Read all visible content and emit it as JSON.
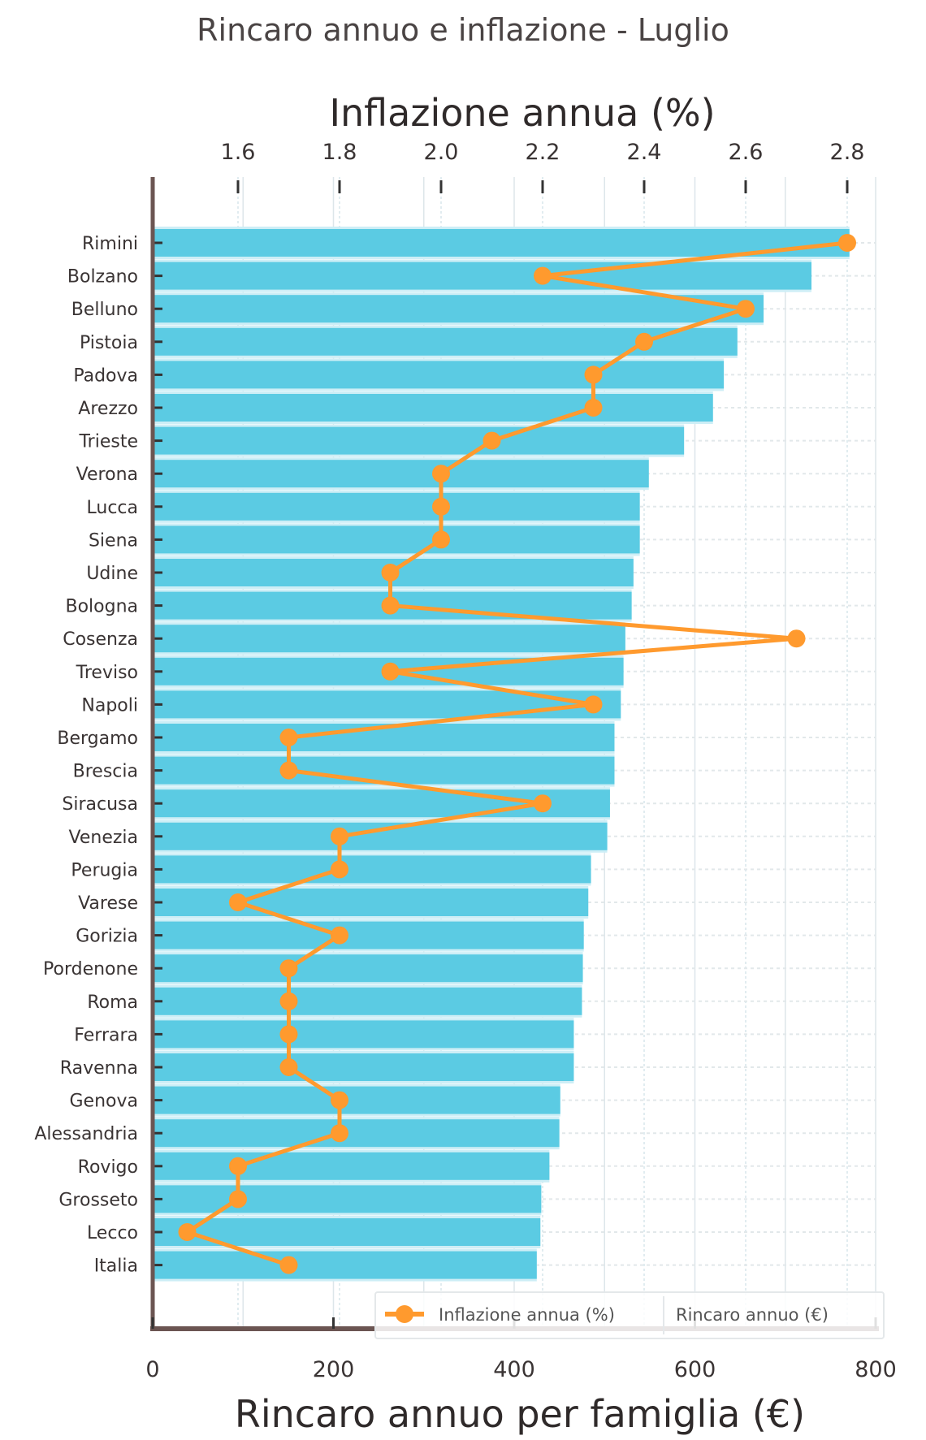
{
  "chart_data": {
    "type": "bar",
    "orientation": "horizontal",
    "title": "Rincaro annuo e inflazione - Luglio",
    "xlabel": "Rincaro annuo per famiglia (€)",
    "x2label": "Inflazione annua (%)",
    "xlim": [
      0,
      800
    ],
    "x2lim": [
      1.43,
      2.84
    ],
    "xticks": [
      0,
      200,
      400,
      600,
      800
    ],
    "xtick_labels": [
      "0",
      "200",
      "400",
      "600",
      "800"
    ],
    "x2ticks": [
      1.6,
      1.8,
      2.0,
      2.2,
      2.4,
      2.6,
      2.8
    ],
    "x2tick_labels": [
      "1.6",
      "1.8",
      "2.0",
      "2.2",
      "2.4",
      "2.6",
      "2.8"
    ],
    "grid": true,
    "legend_position": "bottom-right",
    "categories": [
      "Rimini",
      "Bolzano",
      "Belluno",
      "Pistoia",
      "Padova",
      "Arezzo",
      "Trieste",
      "Verona",
      "Lucca",
      "Siena",
      "Udine",
      "Bologna",
      "Cosenza",
      "Treviso",
      "Napoli",
      "Bergamo",
      "Brescia",
      "Siracusa",
      "Venezia",
      "Perugia",
      "Varese",
      "Gorizia",
      "Pordenone",
      "Roma",
      "Ferrara",
      "Ravenna",
      "Genova",
      "Alessandria",
      "Rovigo",
      "Grosseto",
      "Lecco",
      "Italia"
    ],
    "series": [
      {
        "name": "Rincaro annuo (€)",
        "type": "bar",
        "axis": "bottom",
        "color": "#5bcbe3",
        "values": [
          771,
          729,
          676,
          647,
          632,
          620,
          588,
          549,
          539,
          539,
          532,
          530,
          523,
          521,
          518,
          511,
          511,
          506,
          503,
          485,
          482,
          477,
          476,
          475,
          466,
          466,
          451,
          450,
          439,
          430,
          429,
          425
        ]
      },
      {
        "name": "Inflazione annua (%)",
        "type": "line",
        "axis": "top",
        "color": "#ff9a2e",
        "values": [
          2.8,
          2.2,
          2.6,
          2.4,
          2.3,
          2.3,
          2.1,
          2.0,
          2.0,
          2.0,
          1.9,
          1.9,
          2.7,
          1.9,
          2.3,
          1.7,
          1.7,
          2.2,
          1.8,
          1.8,
          1.6,
          1.8,
          1.7,
          1.7,
          1.7,
          1.7,
          1.8,
          1.8,
          1.6,
          1.6,
          1.5,
          1.7
        ]
      }
    ],
    "legend": [
      {
        "label": "Inflazione annua (%)",
        "marker": "line-circle"
      },
      {
        "label": "Rincaro annuo (€)",
        "marker": "none"
      }
    ]
  }
}
